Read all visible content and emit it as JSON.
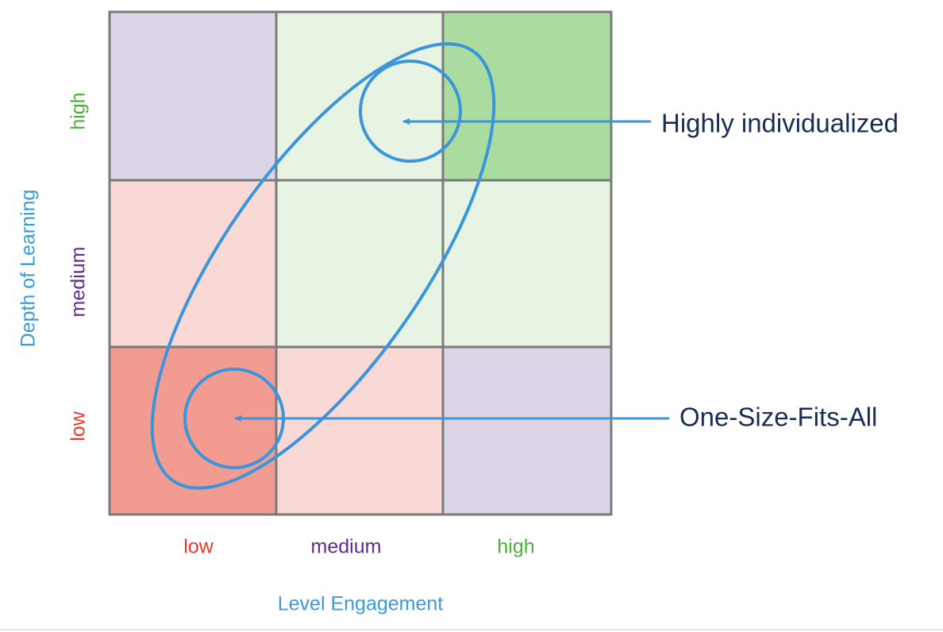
{
  "y_axis": {
    "title": "Depth of Learning",
    "labels": [
      "high",
      "medium",
      "low"
    ]
  },
  "x_axis": {
    "title": "Level Engagement",
    "labels": [
      "low",
      "medium",
      "high"
    ]
  },
  "annotations": [
    "Highly individualized",
    "One-Size-Fits-All"
  ]
}
